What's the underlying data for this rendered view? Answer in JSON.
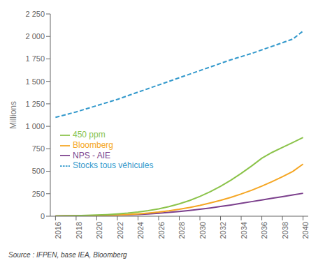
{
  "chart_data": {
    "type": "line",
    "y_label": "Millions",
    "annotations": [
      "Source : IFPEN, base IEA, Bloomberg"
    ],
    "x": [
      2016,
      2017,
      2018,
      2019,
      2020,
      2021,
      2022,
      2023,
      2024,
      2025,
      2026,
      2027,
      2028,
      2029,
      2030,
      2031,
      2032,
      2033,
      2034,
      2035,
      2036,
      2037,
      2038,
      2039,
      2040
    ],
    "series": [
      {
        "name": "NPS - AIE",
        "color": "#7b3f8c",
        "line_style": "solid",
        "values": [
          2,
          3,
          4,
          5,
          7,
          9,
          12,
          16,
          20,
          26,
          33,
          42,
          52,
          64,
          77,
          92,
          108,
          125,
          143,
          162,
          181,
          200,
          218,
          237,
          255
        ]
      },
      {
        "name": "Bloomberg",
        "color": "#f5a623",
        "line_style": "solid",
        "values": [
          2,
          3,
          4,
          5,
          7,
          10,
          14,
          19,
          26,
          35,
          46,
          60,
          77,
          97,
          120,
          147,
          176,
          210,
          247,
          288,
          335,
          385,
          440,
          498,
          580
        ]
      },
      {
        "name": "450 ppm",
        "color": "#8bc34a",
        "line_style": "solid",
        "values": [
          2,
          4,
          6,
          9,
          13,
          18,
          25,
          34,
          46,
          62,
          82,
          107,
          138,
          175,
          220,
          272,
          332,
          400,
          476,
          558,
          645,
          710,
          765,
          820,
          875
        ]
      },
      {
        "name": "Stocks tous véhicules",
        "color": "#3399cc",
        "line_style": "dashed",
        "values": [
          1100,
          1130,
          1160,
          1195,
          1230,
          1265,
          1300,
          1340,
          1380,
          1420,
          1460,
          1500,
          1540,
          1580,
          1620,
          1660,
          1700,
          1740,
          1775,
          1810,
          1850,
          1890,
          1930,
          1970,
          2060
        ]
      }
    ],
    "xlim": [
      2015.5,
      2040.5
    ],
    "xticks": [
      2016,
      2018,
      2020,
      2022,
      2024,
      2026,
      2028,
      2030,
      2032,
      2034,
      2036,
      2038,
      2040
    ],
    "ylim": [
      0,
      2250
    ],
    "yticks": [
      0,
      250,
      500,
      750,
      {
        "value": 1000,
        "label": "1 000"
      },
      {
        "value": 1250,
        "label": "1 250"
      },
      {
        "value": 1500,
        "label": "1 500"
      },
      {
        "value": 1750,
        "label": "1 750"
      },
      {
        "value": 2000,
        "label": "2 000"
      },
      {
        "value": 2250,
        "label": "2 250"
      }
    ],
    "grid": false,
    "legend": "left"
  }
}
